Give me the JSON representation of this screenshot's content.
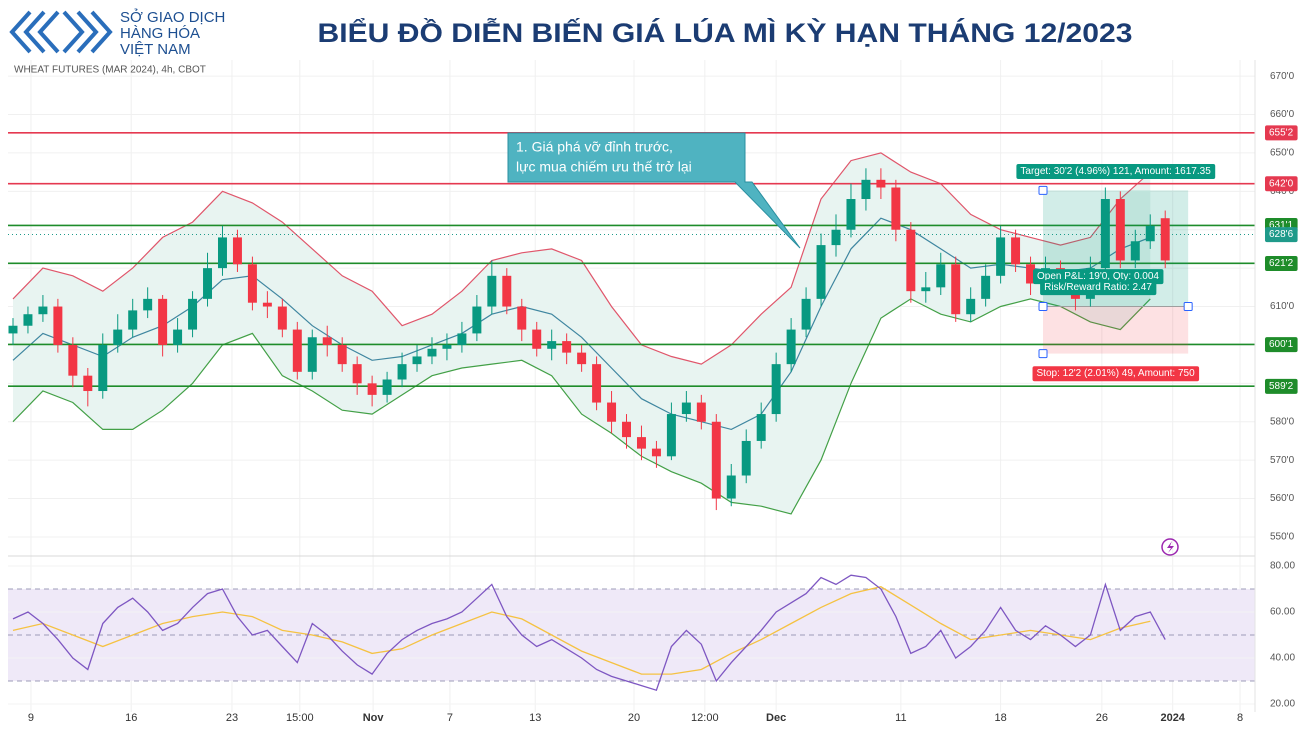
{
  "header": {
    "logo_lines": [
      "SỞ GIAO DỊCH",
      "HÀNG HÓA",
      "VIỆT NAM"
    ],
    "title": "BIỂU ĐỒ DIỄN BIẾN GIÁ LÚA MÌ KỲ HẠN THÁNG 12/2023"
  },
  "chart_data": [
    {
      "type": "candlestick",
      "label": "WHEAT FUTURES (MAR 2024), 4h, CBOT",
      "up_color": "#089981",
      "down_color": "#f23645",
      "grid": true,
      "x": [
        1,
        4,
        7,
        10,
        13,
        16,
        19,
        22,
        25,
        28,
        31,
        34,
        37,
        40,
        43,
        46,
        49,
        52,
        55,
        58,
        61,
        64,
        67,
        70,
        73,
        76,
        79,
        82,
        85,
        88,
        91,
        94,
        97,
        100,
        103,
        106,
        109,
        112,
        115,
        118,
        121,
        124,
        127,
        130,
        133,
        136,
        139,
        142,
        145,
        148,
        151,
        154,
        157,
        160,
        163,
        166,
        169,
        172,
        175,
        178,
        181,
        184,
        187,
        190,
        193,
        196,
        199,
        202,
        205,
        208,
        211,
        214,
        217,
        220,
        223,
        226,
        229,
        232
      ],
      "open": [
        603,
        605,
        608,
        610,
        600,
        592,
        588,
        600,
        604,
        609,
        612,
        600,
        604,
        612,
        620,
        628,
        621,
        611,
        610,
        604,
        593,
        602,
        600,
        595,
        590,
        587,
        591,
        595,
        597,
        599,
        600,
        603,
        610,
        618,
        610,
        604,
        599,
        601,
        598,
        595,
        585,
        580,
        576,
        573,
        571,
        582,
        585,
        580,
        560,
        566,
        575,
        582,
        595,
        604,
        612,
        626,
        630,
        638,
        643,
        641,
        630,
        614,
        615,
        621,
        608,
        612,
        618,
        628,
        621,
        616,
        620,
        617,
        612,
        620,
        638,
        622,
        627,
        633
      ],
      "high": [
        607,
        610,
        613,
        612,
        602,
        594,
        603,
        608,
        612,
        615,
        613,
        607,
        614,
        624,
        631,
        630,
        623,
        614,
        612,
        606,
        604,
        605,
        602,
        597,
        592,
        593,
        598,
        600,
        602,
        603,
        606,
        613,
        622,
        620,
        612,
        606,
        604,
        603,
        600,
        597,
        588,
        582,
        579,
        575,
        585,
        588,
        587,
        582,
        569,
        578,
        585,
        598,
        607,
        615,
        629,
        634,
        642,
        646,
        646,
        643,
        632,
        619,
        624,
        623,
        615,
        621,
        631,
        630,
        623,
        623,
        622,
        619,
        623,
        641,
        640,
        630,
        634,
        635
      ],
      "low": [
        600,
        603,
        606,
        598,
        589,
        584,
        586,
        598,
        602,
        607,
        597,
        598,
        602,
        610,
        618,
        619,
        609,
        607,
        602,
        591,
        591,
        597,
        593,
        587,
        584,
        585,
        589,
        593,
        595,
        596,
        598,
        601,
        608,
        608,
        601,
        597,
        596,
        595,
        593,
        583,
        577,
        573,
        570,
        568,
        570,
        580,
        578,
        557,
        558,
        564,
        573,
        580,
        593,
        602,
        610,
        623,
        628,
        635,
        638,
        627,
        611,
        611,
        613,
        606,
        606,
        610,
        616,
        619,
        613,
        614,
        614,
        609,
        610,
        618,
        620,
        620,
        625,
        620
      ],
      "close": [
        605,
        608,
        610,
        600,
        592,
        588,
        600,
        604,
        609,
        612,
        600,
        604,
        612,
        620,
        628,
        621,
        611,
        610,
        604,
        593,
        602,
        600,
        595,
        590,
        587,
        591,
        595,
        597,
        599,
        600,
        603,
        610,
        618,
        610,
        604,
        599,
        601,
        598,
        595,
        585,
        580,
        576,
        573,
        571,
        582,
        585,
        580,
        560,
        566,
        575,
        582,
        595,
        604,
        612,
        626,
        630,
        638,
        643,
        641,
        630,
        614,
        615,
        621,
        608,
        612,
        618,
        628,
        621,
        616,
        620,
        617,
        612,
        620,
        638,
        622,
        627,
        631,
        622
      ],
      "xlim": [
        0,
        250
      ],
      "xticks": [
        {
          "value": 4.6,
          "label": "9"
        },
        {
          "value": 24.7,
          "label": "16"
        },
        {
          "value": 44.9,
          "label": "23"
        },
        {
          "value": 58.5,
          "label": "15:00"
        },
        {
          "value": 73.2,
          "label": "Nov",
          "bold": true
        },
        {
          "value": 88.6,
          "label": "7"
        },
        {
          "value": 105.7,
          "label": "13"
        },
        {
          "value": 125.5,
          "label": "20"
        },
        {
          "value": 139.7,
          "label": "12:00"
        },
        {
          "value": 154,
          "label": "Dec",
          "bold": true
        },
        {
          "value": 179,
          "label": "11"
        },
        {
          "value": 199,
          "label": "18"
        },
        {
          "value": 219.3,
          "label": "26"
        },
        {
          "value": 233.5,
          "label": "2024",
          "bold": true
        },
        {
          "value": 247,
          "label": "8"
        }
      ],
      "ylim": [
        545.3,
        674.2
      ],
      "yticks": [
        {
          "value": 670,
          "label": "670'0"
        },
        {
          "value": 660,
          "label": "660'0"
        },
        {
          "value": 650,
          "label": "650'0"
        },
        {
          "value": 640,
          "label": "640'0"
        },
        {
          "value": 630,
          "label": "630'0"
        },
        {
          "value": 620,
          "label": "620'0"
        },
        {
          "value": 610,
          "label": "610'0"
        },
        {
          "value": 600,
          "label": "600'0"
        },
        {
          "value": 590,
          "label": "590'0"
        },
        {
          "value": 580,
          "label": "580'0"
        },
        {
          "value": 570,
          "label": "570'0"
        },
        {
          "value": 560,
          "label": "560'0"
        },
        {
          "value": 550,
          "label": "550'0"
        }
      ],
      "bands": {
        "x": [
          1,
          7,
          13,
          19,
          25,
          31,
          37,
          43,
          49,
          55,
          61,
          67,
          73,
          79,
          85,
          91,
          97,
          103,
          109,
          115,
          121,
          127,
          133,
          139,
          145,
          151,
          157,
          163,
          169,
          175,
          181,
          187,
          193,
          199,
          205,
          211,
          217,
          223,
          229
        ],
        "upper": [
          612,
          620,
          618,
          614,
          620,
          628,
          632,
          640,
          637,
          632,
          625,
          618,
          614,
          605,
          608,
          614,
          622,
          624,
          625,
          622,
          610,
          600,
          597,
          595,
          600,
          608,
          615,
          638,
          648,
          650,
          645,
          642,
          634,
          630,
          628,
          626,
          628,
          638,
          645
        ],
        "middle": [
          596,
          603,
          600,
          597,
          602,
          605,
          610,
          617,
          618,
          612,
          605,
          600,
          596,
          597,
          600,
          603,
          608,
          610,
          608,
          602,
          594,
          586,
          582,
          580,
          578,
          582,
          593,
          610,
          625,
          633,
          630,
          625,
          620,
          621,
          620,
          619,
          620,
          625,
          628
        ],
        "lower": [
          580,
          588,
          585,
          578,
          578,
          583,
          590,
          600,
          603,
          592,
          588,
          583,
          582,
          587,
          592,
          594,
          595,
          596,
          592,
          582,
          577,
          571,
          567,
          564,
          559,
          558,
          556,
          570,
          590,
          607,
          612,
          608,
          606,
          610,
          612,
          610,
          606,
          604,
          612
        ],
        "upper_color": "#e0566b",
        "middle_color": "#3f86a0",
        "lower_color": "#43a047",
        "fill": "#e8f4f1"
      },
      "levels": [
        {
          "value": 655.25,
          "label": "655'2",
          "color": "#e53950"
        },
        {
          "value": 642,
          "label": "642'0",
          "color": "#e53950"
        },
        {
          "value": 631.125,
          "label": "631'1",
          "color": "#1e8c2a"
        },
        {
          "value": 628.75,
          "label": "628'6",
          "color": "#1f9a8a",
          "dotted": true
        },
        {
          "value": 621.25,
          "label": "621'2",
          "color": "#1e8c2a"
        },
        {
          "value": 600.125,
          "label": "600'1",
          "color": "#1e8c2a"
        },
        {
          "value": 589.25,
          "label": "589'2",
          "color": "#1e8c2a"
        }
      ],
      "annotation": {
        "lines": [
          "1. Giá phá vỡ đỉnh trước,",
          "lực mua chiếm ưu thế trở lại"
        ]
      },
      "position": {
        "x_start": 207.5,
        "x_end": 236.6,
        "entry": 610,
        "target": 640.25,
        "stop": 597.75,
        "target_label": "Target: 30'2 (4.96%) 121, Amount: 1617.35",
        "pnl_label": "Open P&L: 19'0, Qty: 0.004",
        "rr_label": "Risk/Reward Ratio: 2.47",
        "stop_label": "Stop: 12'2 (2.01%) 49, Amount: 750"
      }
    },
    {
      "type": "line",
      "grid": true,
      "xlim": [
        0,
        250
      ],
      "ylim": [
        16.5,
        83.9
      ],
      "yticks": [
        {
          "value": 80,
          "label": "80.00"
        },
        {
          "value": 60,
          "label": "60.00"
        },
        {
          "value": 40,
          "label": "40.00"
        },
        {
          "value": 20,
          "label": "20.00"
        }
      ],
      "levels": [
        70,
        50,
        30
      ],
      "fill": "#efe9f8",
      "series": [
        {
          "color": "#7e57c2",
          "x": [
            1,
            4,
            7,
            10,
            13,
            16,
            19,
            22,
            25,
            28,
            31,
            34,
            37,
            40,
            43,
            46,
            49,
            52,
            55,
            58,
            61,
            64,
            67,
            70,
            73,
            76,
            79,
            82,
            85,
            88,
            91,
            94,
            97,
            100,
            103,
            106,
            109,
            112,
            115,
            118,
            121,
            124,
            127,
            130,
            133,
            136,
            139,
            142,
            145,
            148,
            151,
            154,
            157,
            160,
            163,
            166,
            169,
            172,
            175,
            178,
            181,
            184,
            187,
            190,
            193,
            196,
            199,
            202,
            205,
            208,
            211,
            214,
            217,
            220,
            223,
            226,
            229,
            232
          ],
          "values": [
            57,
            60,
            55,
            48,
            40,
            35,
            55,
            62,
            66,
            60,
            52,
            55,
            62,
            68,
            70,
            58,
            50,
            52,
            45,
            38,
            55,
            50,
            43,
            37,
            33,
            42,
            48,
            52,
            55,
            57,
            60,
            66,
            72,
            58,
            50,
            45,
            48,
            44,
            40,
            35,
            32,
            30,
            28,
            26,
            45,
            52,
            46,
            30,
            38,
            45,
            52,
            60,
            64,
            68,
            75,
            72,
            76,
            75,
            70,
            58,
            42,
            45,
            52,
            40,
            45,
            52,
            62,
            52,
            48,
            54,
            50,
            45,
            50,
            72,
            52,
            58,
            60,
            48
          ]
        },
        {
          "color": "#f5c242",
          "x": [
            1,
            7,
            13,
            19,
            25,
            31,
            37,
            43,
            49,
            55,
            61,
            67,
            73,
            79,
            85,
            91,
            97,
            103,
            109,
            115,
            121,
            127,
            133,
            139,
            145,
            151,
            157,
            163,
            169,
            175,
            181,
            187,
            193,
            199,
            205,
            211,
            217,
            223,
            229
          ],
          "values": [
            52,
            55,
            50,
            45,
            50,
            55,
            58,
            60,
            58,
            52,
            50,
            47,
            42,
            44,
            50,
            55,
            60,
            57,
            50,
            43,
            38,
            33,
            33,
            35,
            42,
            48,
            55,
            62,
            68,
            71,
            63,
            55,
            48,
            50,
            52,
            50,
            48,
            53,
            56
          ]
        }
      ]
    }
  ]
}
